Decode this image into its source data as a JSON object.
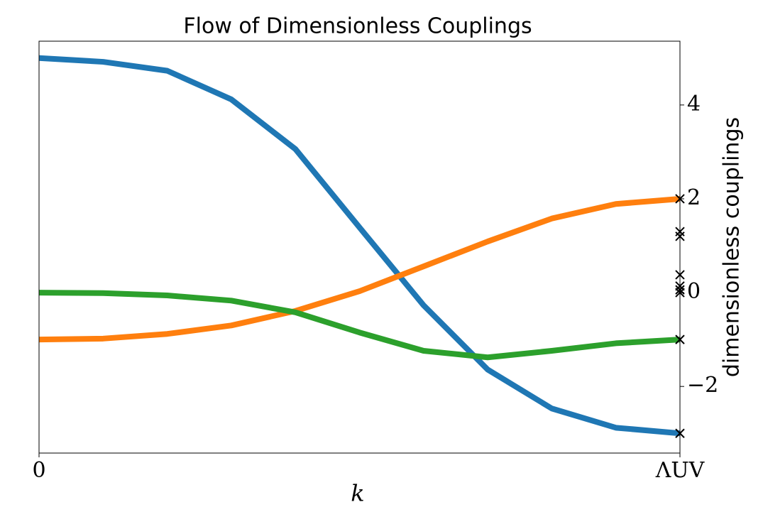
{
  "chart_data": {
    "type": "line",
    "title": "Flow of Dimensionless Couplings",
    "xlabel": "k",
    "ylabel": "dimensionless couplings",
    "x": [
      0,
      0.1,
      0.2,
      0.3,
      0.4,
      0.5,
      0.6,
      0.7,
      0.8,
      0.9,
      1
    ],
    "series": [
      {
        "color": "#1f77b4",
        "values": [
          5,
          4.92,
          4.73,
          4.12,
          3.06,
          1.39,
          -0.27,
          -1.64,
          -2.47,
          -2.88,
          -3
        ]
      },
      {
        "color": "#ff7f0e",
        "values": [
          -1,
          -0.98,
          -0.88,
          -0.7,
          -0.39,
          0.03,
          0.56,
          1.09,
          1.58,
          1.89,
          2
        ]
      },
      {
        "color": "#2ca02c",
        "values": [
          0,
          -0.01,
          -0.06,
          -0.17,
          -0.42,
          -0.85,
          -1.24,
          -1.38,
          -1.24,
          -1.08,
          -1
        ]
      }
    ],
    "markers": {
      "color": "#000000",
      "x": [
        1,
        1,
        1,
        1,
        1,
        1,
        1,
        1,
        1
      ],
      "values": [
        2,
        1.3,
        1.2,
        0.38,
        0.14,
        0.06,
        0,
        -1,
        -3
      ]
    },
    "xlim": [
      0,
      1
    ],
    "xticks": [
      0,
      {
        "value": 1,
        "label": "ΛUV"
      }
    ],
    "ylim": [
      -3.42,
      5.36
    ],
    "yticks": [
      {
        "value": -2,
        "label": "−2"
      },
      0,
      2,
      4
    ],
    "y_axis_side": "right",
    "grid": false
  }
}
